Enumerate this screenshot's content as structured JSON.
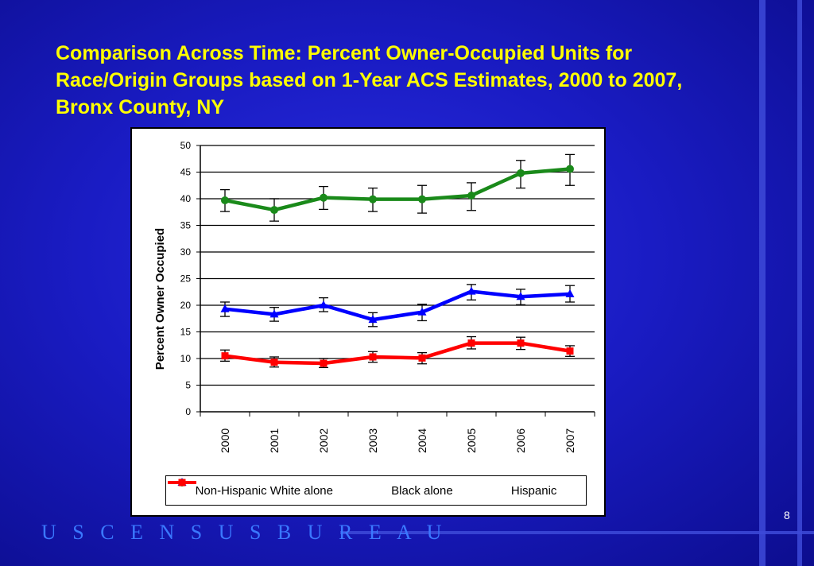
{
  "title": "Comparison Across Time:  Percent Owner-Occupied Units for Race/Origin Groups based on 1-Year ACS Estimates, 2000 to 2007, Bronx County, NY",
  "footer": "USCENSUSBUREAU",
  "page_number": "8",
  "colors": {
    "title": "#ffff00",
    "background": "#1a1cc4",
    "footer": "#3a78ff",
    "white_series": "#1a8a1a",
    "black_series": "#0000ff",
    "hispanic_series": "#ff0000"
  },
  "chart_data": {
    "type": "line",
    "title": "",
    "xlabel": "",
    "ylabel": "Percent Owner Occupied",
    "ylim": [
      0,
      50
    ],
    "yticks": [
      "0",
      "5",
      "10",
      "15",
      "20",
      "25",
      "30",
      "35",
      "40",
      "45",
      "50"
    ],
    "categories": [
      "2000",
      "2001",
      "2002",
      "2003",
      "2004",
      "2005",
      "2006",
      "2007"
    ],
    "grid": true,
    "legend_position": "bottom",
    "series": [
      {
        "name": "Non-Hispanic White alone",
        "color": "#1a8a1a",
        "marker": "circle",
        "values": [
          39.7,
          37.9,
          40.2,
          39.9,
          39.9,
          40.6,
          44.8,
          45.6
        ],
        "error_low": [
          37.6,
          35.8,
          38.0,
          37.6,
          37.3,
          37.8,
          42.0,
          42.5
        ],
        "error_high": [
          41.7,
          40.0,
          42.3,
          42.0,
          42.5,
          43.0,
          47.2,
          48.3
        ]
      },
      {
        "name": "Black alone",
        "color": "#0000ff",
        "marker": "triangle",
        "values": [
          19.3,
          18.3,
          20.0,
          17.3,
          18.7,
          22.6,
          21.6,
          22.1
        ],
        "error_low": [
          17.9,
          17.0,
          18.8,
          16.0,
          17.1,
          21.0,
          20.1,
          20.6
        ],
        "error_high": [
          20.6,
          19.6,
          21.4,
          18.6,
          20.2,
          23.9,
          23.0,
          23.7
        ]
      },
      {
        "name": "Hispanic",
        "color": "#ff0000",
        "marker": "square",
        "values": [
          10.5,
          9.3,
          9.1,
          10.3,
          10.1,
          12.9,
          12.9,
          11.4
        ],
        "error_low": [
          9.5,
          8.4,
          8.3,
          9.3,
          9.0,
          11.8,
          11.7,
          10.4
        ],
        "error_high": [
          11.6,
          10.3,
          10.0,
          11.3,
          11.1,
          14.1,
          14.0,
          12.4
        ]
      }
    ]
  }
}
